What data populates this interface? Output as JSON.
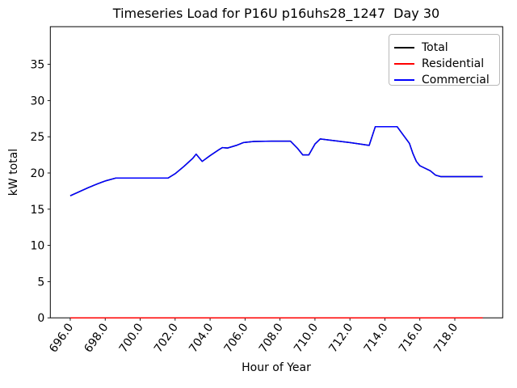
{
  "chart_data": {
    "type": "line",
    "title": "Timeseries Load for P16U p16uhs28_1247  Day 30",
    "xlabel": "Hour of Year",
    "ylabel": "kW total",
    "xlim": [
      694.86,
      720.74
    ],
    "ylim": [
      0,
      40.2
    ],
    "grid": false,
    "legend_position": "upper right",
    "x_ticks": [
      696,
      698,
      700,
      702,
      704,
      706,
      708,
      710,
      712,
      714,
      716,
      718
    ],
    "x_tick_labels": [
      "696.0",
      "698.0",
      "700.0",
      "702.0",
      "704.0",
      "706.0",
      "708.0",
      "710.0",
      "712.0",
      "714.0",
      "716.0",
      "718.0"
    ],
    "y_ticks": [
      0,
      5,
      10,
      15,
      20,
      25,
      30,
      35
    ],
    "y_tick_labels": [
      "0",
      "5",
      "10",
      "15",
      "20",
      "25",
      "30",
      "35"
    ],
    "series": [
      {
        "name": "Total",
        "color": "#000000",
        "x": [
          696.0,
          696.5,
          697.0,
          697.5,
          698.0,
          698.6,
          700.0,
          701.6,
          702.0,
          702.5,
          703.0,
          703.2,
          703.55,
          704.0,
          704.5,
          704.7,
          705.0,
          705.5,
          705.9,
          706.5,
          707.5,
          708.6,
          709.0,
          709.3,
          709.65,
          710.0,
          710.3,
          711.0,
          712.0,
          712.6,
          713.1,
          713.45,
          714.7,
          715.0,
          715.4,
          715.6,
          715.8,
          716.0,
          716.6,
          716.9,
          717.2,
          719.6
        ],
        "y": [
          16.85,
          17.4,
          17.95,
          18.45,
          18.9,
          19.3,
          19.3,
          19.3,
          19.9,
          20.9,
          22.0,
          22.6,
          21.6,
          22.4,
          23.2,
          23.5,
          23.45,
          23.8,
          24.2,
          24.35,
          24.4,
          24.4,
          23.4,
          22.5,
          22.5,
          24.0,
          24.7,
          24.5,
          24.2,
          24.0,
          23.8,
          26.4,
          26.4,
          25.4,
          24.1,
          22.7,
          21.6,
          21.0,
          20.3,
          19.7,
          19.5,
          19.5
        ]
      },
      {
        "name": "Residential",
        "color": "#ff0000",
        "x": [
          696.0,
          719.6
        ],
        "y": [
          0,
          0
        ]
      },
      {
        "name": "Commercial",
        "color": "#0000ff",
        "x": [
          696.0,
          696.5,
          697.0,
          697.5,
          698.0,
          698.6,
          700.0,
          701.6,
          702.0,
          702.5,
          703.0,
          703.2,
          703.55,
          704.0,
          704.5,
          704.7,
          705.0,
          705.5,
          705.9,
          706.5,
          707.5,
          708.6,
          709.0,
          709.3,
          709.65,
          710.0,
          710.3,
          711.0,
          712.0,
          712.6,
          713.1,
          713.45,
          714.7,
          715.0,
          715.4,
          715.6,
          715.8,
          716.0,
          716.6,
          716.9,
          717.2,
          719.6
        ],
        "y": [
          16.85,
          17.4,
          17.95,
          18.45,
          18.9,
          19.3,
          19.3,
          19.3,
          19.9,
          20.9,
          22.0,
          22.6,
          21.6,
          22.4,
          23.2,
          23.5,
          23.45,
          23.8,
          24.2,
          24.35,
          24.4,
          24.4,
          23.4,
          22.5,
          22.5,
          24.0,
          24.7,
          24.5,
          24.2,
          24.0,
          23.8,
          26.4,
          26.4,
          25.4,
          24.1,
          22.7,
          21.6,
          21.0,
          20.3,
          19.7,
          19.5,
          19.5
        ]
      }
    ]
  },
  "legend": {
    "items": [
      {
        "label": "Total",
        "color": "#000000"
      },
      {
        "label": "Residential",
        "color": "#ff0000"
      },
      {
        "label": "Commercial",
        "color": "#0000ff"
      }
    ]
  }
}
